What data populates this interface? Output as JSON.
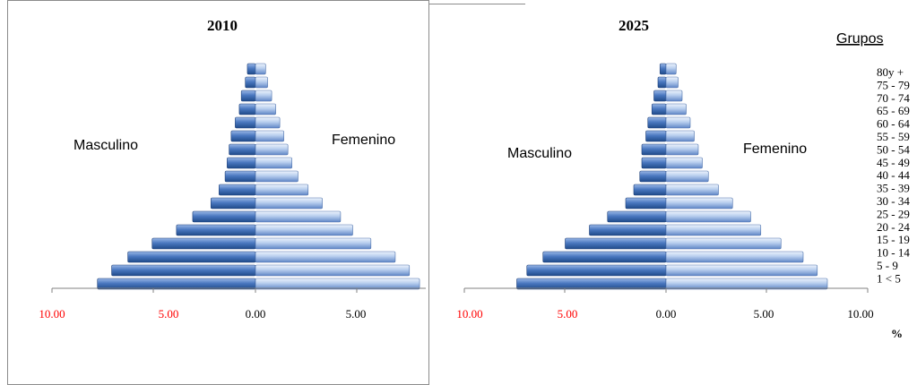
{
  "legend": {
    "title": "Grupos",
    "groups": [
      "80y +",
      "75 - 79",
      "70 - 74",
      "65 - 69",
      "60 - 64",
      "55 - 59",
      "50 - 54",
      "45 - 49",
      "40 - 44",
      "35 - 39",
      "30 - 34",
      "25 - 29",
      "20 - 24",
      "15 - 19",
      "10 - 14",
      "5 - 9",
      "1 < 5"
    ]
  },
  "unit_label": "%",
  "colors": {
    "male_dark": "#2b5797",
    "male_light": "#7fa3dc",
    "female_dark": "#3d6db3",
    "female_light": "#d4e2f7",
    "neg_tick": "#ff0000",
    "pos_tick": "#000000"
  },
  "chart_data": [
    {
      "type": "bar",
      "orientation": "horizontal",
      "title": "2010",
      "left_label": "Masculino",
      "right_label": "Femenino",
      "tick_labels": [
        "10.00",
        "5.00",
        "0.00",
        "5.00"
      ],
      "xlim": [
        -10,
        10
      ],
      "categories": [
        "1 < 5",
        "5 - 9",
        "10 - 14",
        "15 - 19",
        "20 - 24",
        "25 - 29",
        "30 - 34",
        "35 - 39",
        "40 - 44",
        "45 - 49",
        "50 - 54",
        "55 - 59",
        "60 - 64",
        "65 - 69",
        "70 - 74",
        "75 - 79",
        "80y +"
      ],
      "series": [
        {
          "name": "Masculino",
          "values": [
            7.8,
            7.1,
            6.3,
            5.1,
            3.9,
            3.1,
            2.2,
            1.8,
            1.5,
            1.4,
            1.3,
            1.2,
            1.0,
            0.8,
            0.7,
            0.5,
            0.4
          ]
        },
        {
          "name": "Femenino",
          "values": [
            8.1,
            7.6,
            6.9,
            5.7,
            4.8,
            4.2,
            3.3,
            2.6,
            2.1,
            1.8,
            1.6,
            1.4,
            1.2,
            1.0,
            0.8,
            0.6,
            0.5
          ]
        }
      ]
    },
    {
      "type": "bar",
      "orientation": "horizontal",
      "title": "2025",
      "left_label": "Masculino",
      "right_label": "Femenino",
      "tick_labels": [
        "10.00",
        "5.00",
        "0.00",
        "5.00",
        "10.00"
      ],
      "xlim": [
        -10,
        10
      ],
      "categories": [
        "1 < 5",
        "5 - 9",
        "10 - 14",
        "15 - 19",
        "20 - 24",
        "25 - 29",
        "30 - 34",
        "35 - 39",
        "40 - 44",
        "45 - 49",
        "50 - 54",
        "55 - 59",
        "60 - 64",
        "65 - 69",
        "70 - 74",
        "75 - 79",
        "80y +"
      ],
      "series": [
        {
          "name": "Masculino",
          "values": [
            7.4,
            6.9,
            6.1,
            5.0,
            3.8,
            2.9,
            2.0,
            1.6,
            1.3,
            1.2,
            1.2,
            1.0,
            0.9,
            0.7,
            0.6,
            0.4,
            0.3
          ]
        },
        {
          "name": "Femenino",
          "values": [
            8.0,
            7.5,
            6.8,
            5.7,
            4.7,
            4.2,
            3.3,
            2.6,
            2.1,
            1.8,
            1.6,
            1.4,
            1.2,
            1.0,
            0.8,
            0.6,
            0.5
          ]
        }
      ]
    }
  ]
}
